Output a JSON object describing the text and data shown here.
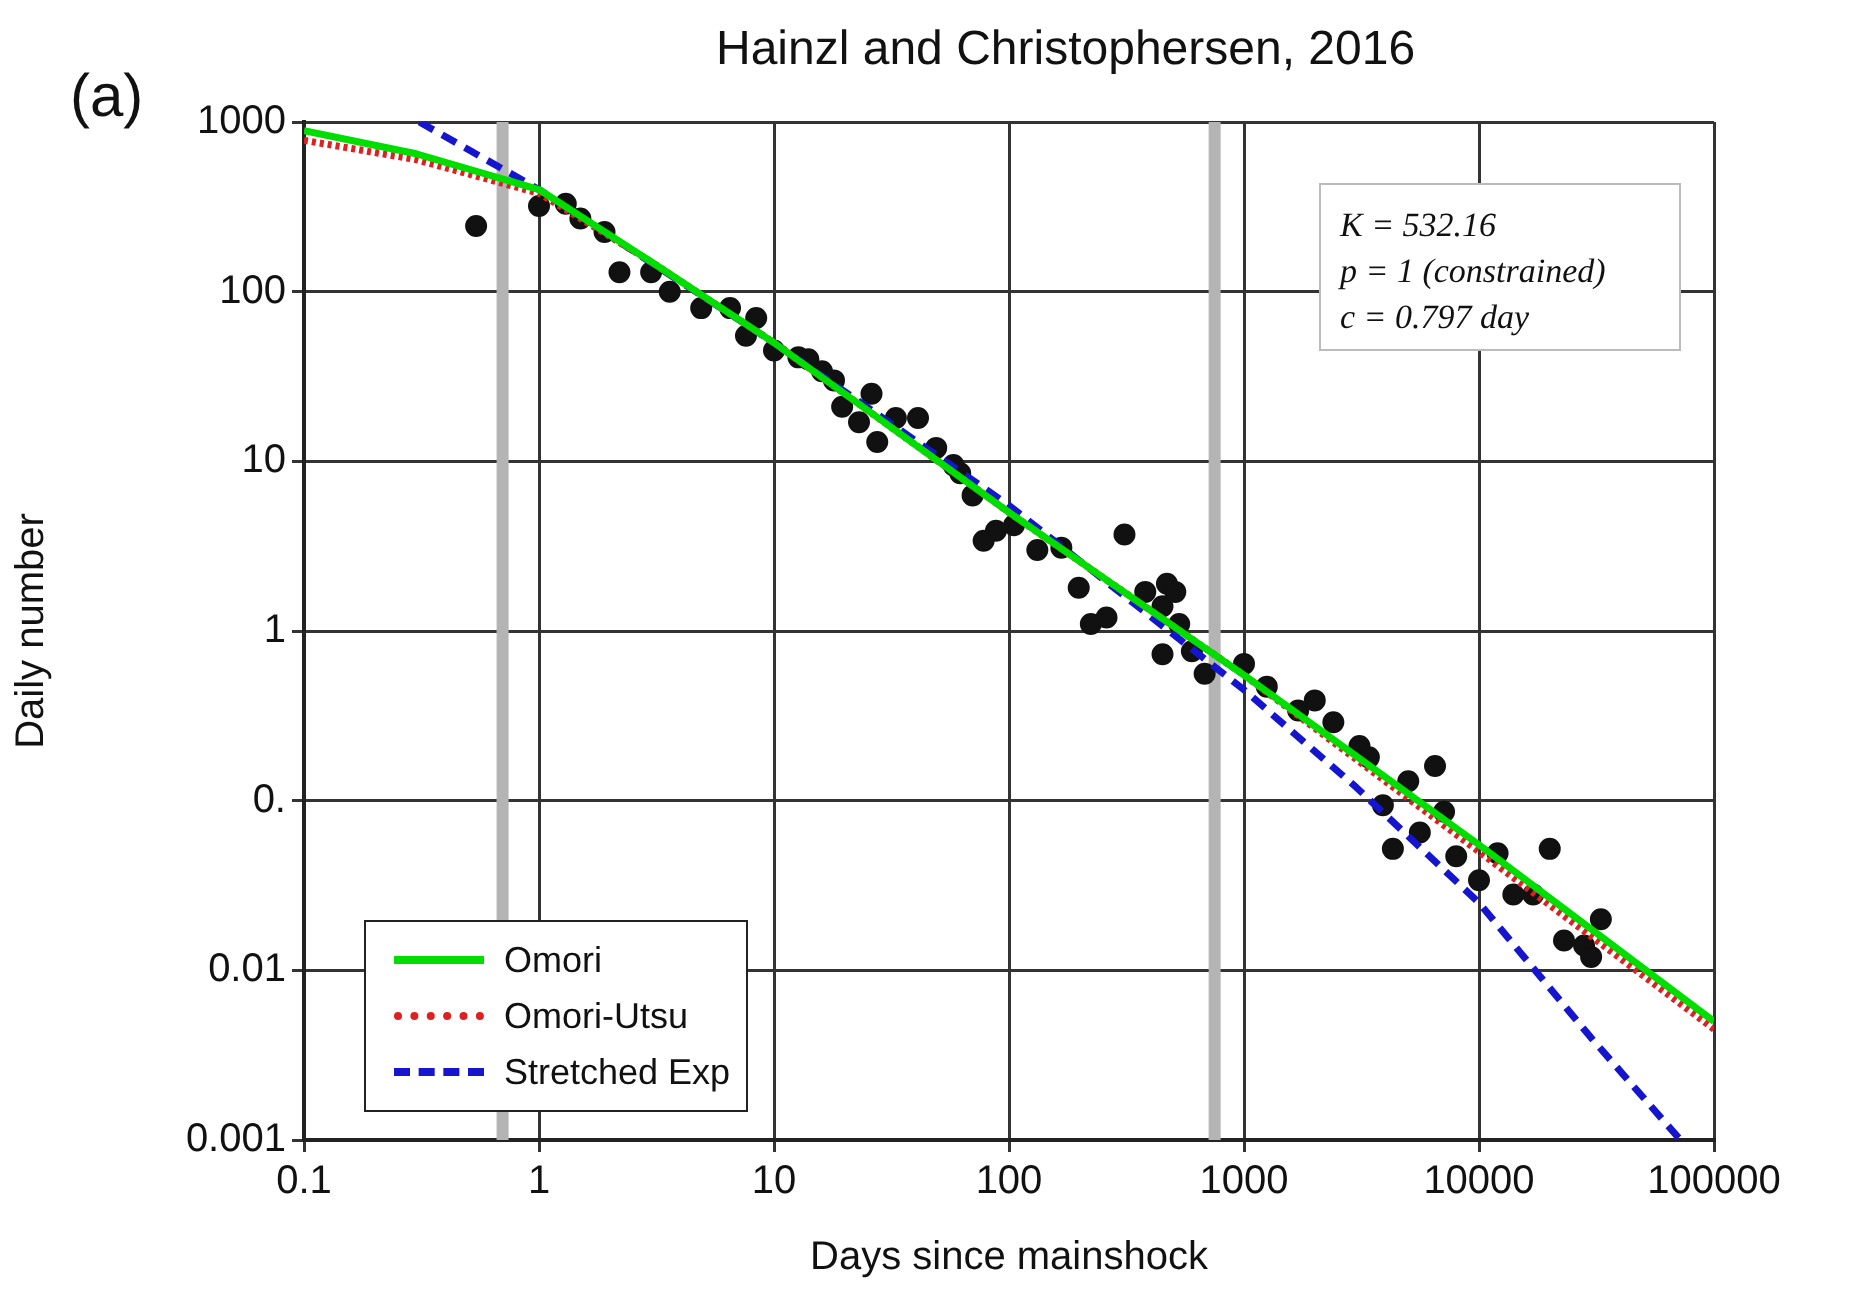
{
  "chart_data": {
    "type": "scatter",
    "title": "(a)",
    "xlabel": "Days since mainshock",
    "ylabel": "Daily number",
    "annotations": [
      "Hainzl and Christophersen, 2016",
      "K = 532.16",
      "p = 1 (constrained)",
      "c = 0.797 day"
    ],
    "log": "xy",
    "grid": true,
    "legend": "bottom left",
    "xlim": [
      0.1,
      100000
    ],
    "xticks": [
      0.1,
      1,
      10,
      100,
      1000,
      10000,
      100000
    ],
    "ylim": [
      0.001,
      1000
    ],
    "yticks": [
      0.001,
      0.01,
      {
        "value": 0.1,
        "label": "0."
      },
      1,
      10,
      100,
      1000
    ],
    "ref_lines": [
      {
        "axis": "x",
        "value": 0.7,
        "color": "#b4b4b4"
      },
      {
        "axis": "x",
        "value": 750,
        "color": "#b4b4b4"
      }
    ],
    "series": [
      {
        "marker": "circle",
        "color": "#111111",
        "x": [
          0.54,
          1.0,
          1.3,
          1.5,
          1.9,
          2.2,
          3.0,
          3.6,
          4.9,
          6.5,
          8.4,
          7.6,
          10,
          12.7,
          14,
          16,
          18,
          19.5,
          23,
          26,
          27.5,
          33,
          41,
          49,
          58,
          62,
          70,
          78,
          88,
          105,
          132,
          167,
          198,
          223,
          260,
          310,
          380,
          450,
          470,
          510,
          450,
          530,
          600,
          680,
          1000,
          1250,
          1700,
          2000,
          2400,
          3100,
          3400,
          3900,
          4300,
          5000,
          5600,
          6500,
          7100,
          8000,
          10000,
          12000,
          14000,
          17000,
          20000,
          23000,
          28000,
          30000,
          33000
        ],
        "values": [
          244,
          320,
          330,
          270,
          225,
          130,
          130,
          100,
          80,
          80,
          70,
          55,
          45,
          41,
          40,
          34,
          30,
          21,
          17,
          25,
          13,
          18,
          18,
          12,
          9.5,
          8.5,
          6.3,
          3.4,
          3.9,
          4.2,
          3.0,
          3.1,
          1.8,
          1.1,
          1.2,
          3.7,
          1.7,
          1.4,
          1.9,
          1.7,
          0.73,
          1.1,
          0.76,
          0.56,
          0.64,
          0.47,
          0.34,
          0.39,
          0.29,
          0.21,
          0.18,
          0.094,
          0.052,
          0.13,
          0.065,
          0.16,
          0.086,
          0.047,
          0.034,
          0.049,
          0.028,
          0.028,
          0.052,
          0.015,
          0.014,
          0.012,
          0.02
        ]
      },
      {
        "type": "line",
        "marker": "none",
        "name": "Omori",
        "color": "#00dd00",
        "line_style": "solid",
        "x": [
          0.1,
          0.3,
          1,
          3,
          10,
          100,
          1000,
          10000,
          100000
        ],
        "values": [
          890,
          650,
          400,
          150,
          50,
          5,
          0.55,
          0.055,
          0.005
        ]
      },
      {
        "type": "line",
        "marker": "none",
        "name": "Omori-Utsu",
        "color": "#e02020",
        "line_style": "dotted",
        "x": [
          0.1,
          0.3,
          1,
          3,
          10,
          100,
          1000,
          10000,
          100000
        ],
        "values": [
          780,
          600,
          380,
          150,
          50,
          5,
          0.55,
          0.05,
          0.0045
        ]
      },
      {
        "type": "line",
        "marker": "none",
        "name": "Stretched Exp",
        "color": "#1515d0",
        "line_style": "dashed",
        "x": [
          0.31,
          1,
          10,
          100,
          1000,
          3000,
          10000,
          30000,
          72000
        ],
        "values": [
          1000,
          400,
          50,
          5.5,
          0.45,
          0.12,
          0.025,
          0.004,
          0.001
        ]
      }
    ]
  }
}
